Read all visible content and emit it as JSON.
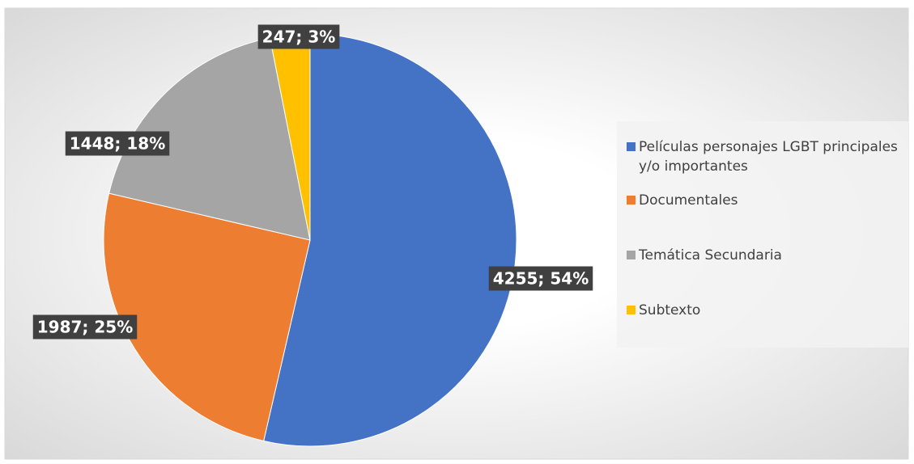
{
  "chart_data": {
    "type": "pie",
    "categories": [
      "Películas personajes LGBT principales y/o importantes",
      "Documentales",
      "Temática Secundaria",
      "Subtexto"
    ],
    "values": [
      4255,
      1987,
      1448,
      247
    ],
    "value_labels": [
      "4255; 54%",
      "1987; 25%",
      "1448; 18%",
      "247; 3%"
    ],
    "colors": [
      "#4472c4",
      "#ed7d31",
      "#a5a5a5",
      "#ffc000"
    ],
    "legend": "right"
  }
}
